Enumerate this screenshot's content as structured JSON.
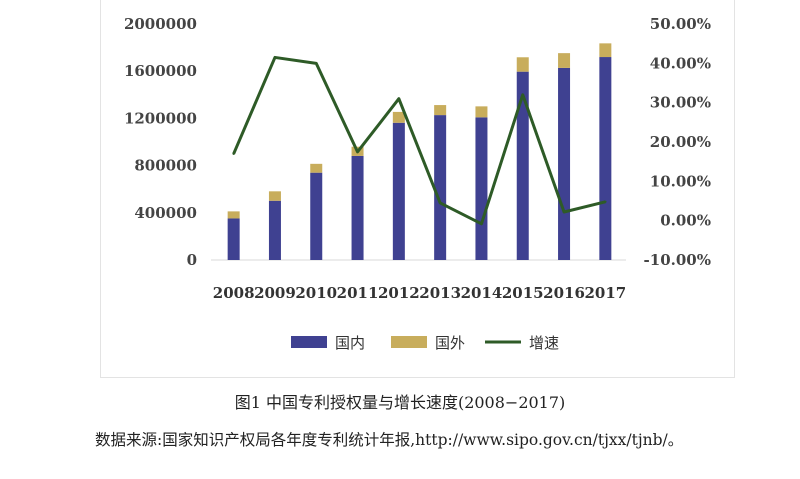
{
  "chart_data": {
    "type": "bar",
    "categories": [
      "2008",
      "2009",
      "2010",
      "2011",
      "2012",
      "2013",
      "2014",
      "2015",
      "2016",
      "2017"
    ],
    "series": [
      {
        "name": "国内",
        "kind": "bar",
        "stack": "total",
        "axis": "left",
        "color": "#3f4191",
        "values": [
          352000,
          502000,
          740000,
          882000,
          1163000,
          1228000,
          1209000,
          1596000,
          1628000,
          1720000
        ]
      },
      {
        "name": "国外",
        "kind": "bar",
        "stack": "total",
        "axis": "left",
        "color": "#c8ad5c",
        "values": [
          60000,
          80000,
          75000,
          78000,
          92000,
          85000,
          93000,
          122000,
          125000,
          116000
        ]
      },
      {
        "name": "增速",
        "kind": "line",
        "axis": "right",
        "color": "#2e5b27",
        "values": [
          17.0,
          41.5,
          40.0,
          17.5,
          31.0,
          4.5,
          -0.8,
          32.0,
          2.2,
          4.8
        ]
      }
    ],
    "y_left": {
      "ylim": [
        0,
        2000000
      ],
      "ticks": [
        "0",
        "400000",
        "800000",
        "1200000",
        "1600000",
        "2000000"
      ]
    },
    "y_right": {
      "ylim": [
        -10,
        50
      ],
      "ticks": [
        "-10.00%",
        "0.00%",
        "10.00%",
        "20.00%",
        "30.00%",
        "40.00%",
        "50.00%"
      ]
    },
    "legend_position": "bottom",
    "grid": false
  },
  "caption": "图1  中国专利授权量与增长速度(2008−2017)",
  "source_note": "数据来源:国家知识产权局各年度专利统计年报,http://www.sipo.gov.cn/tjxx/tjnb/。"
}
